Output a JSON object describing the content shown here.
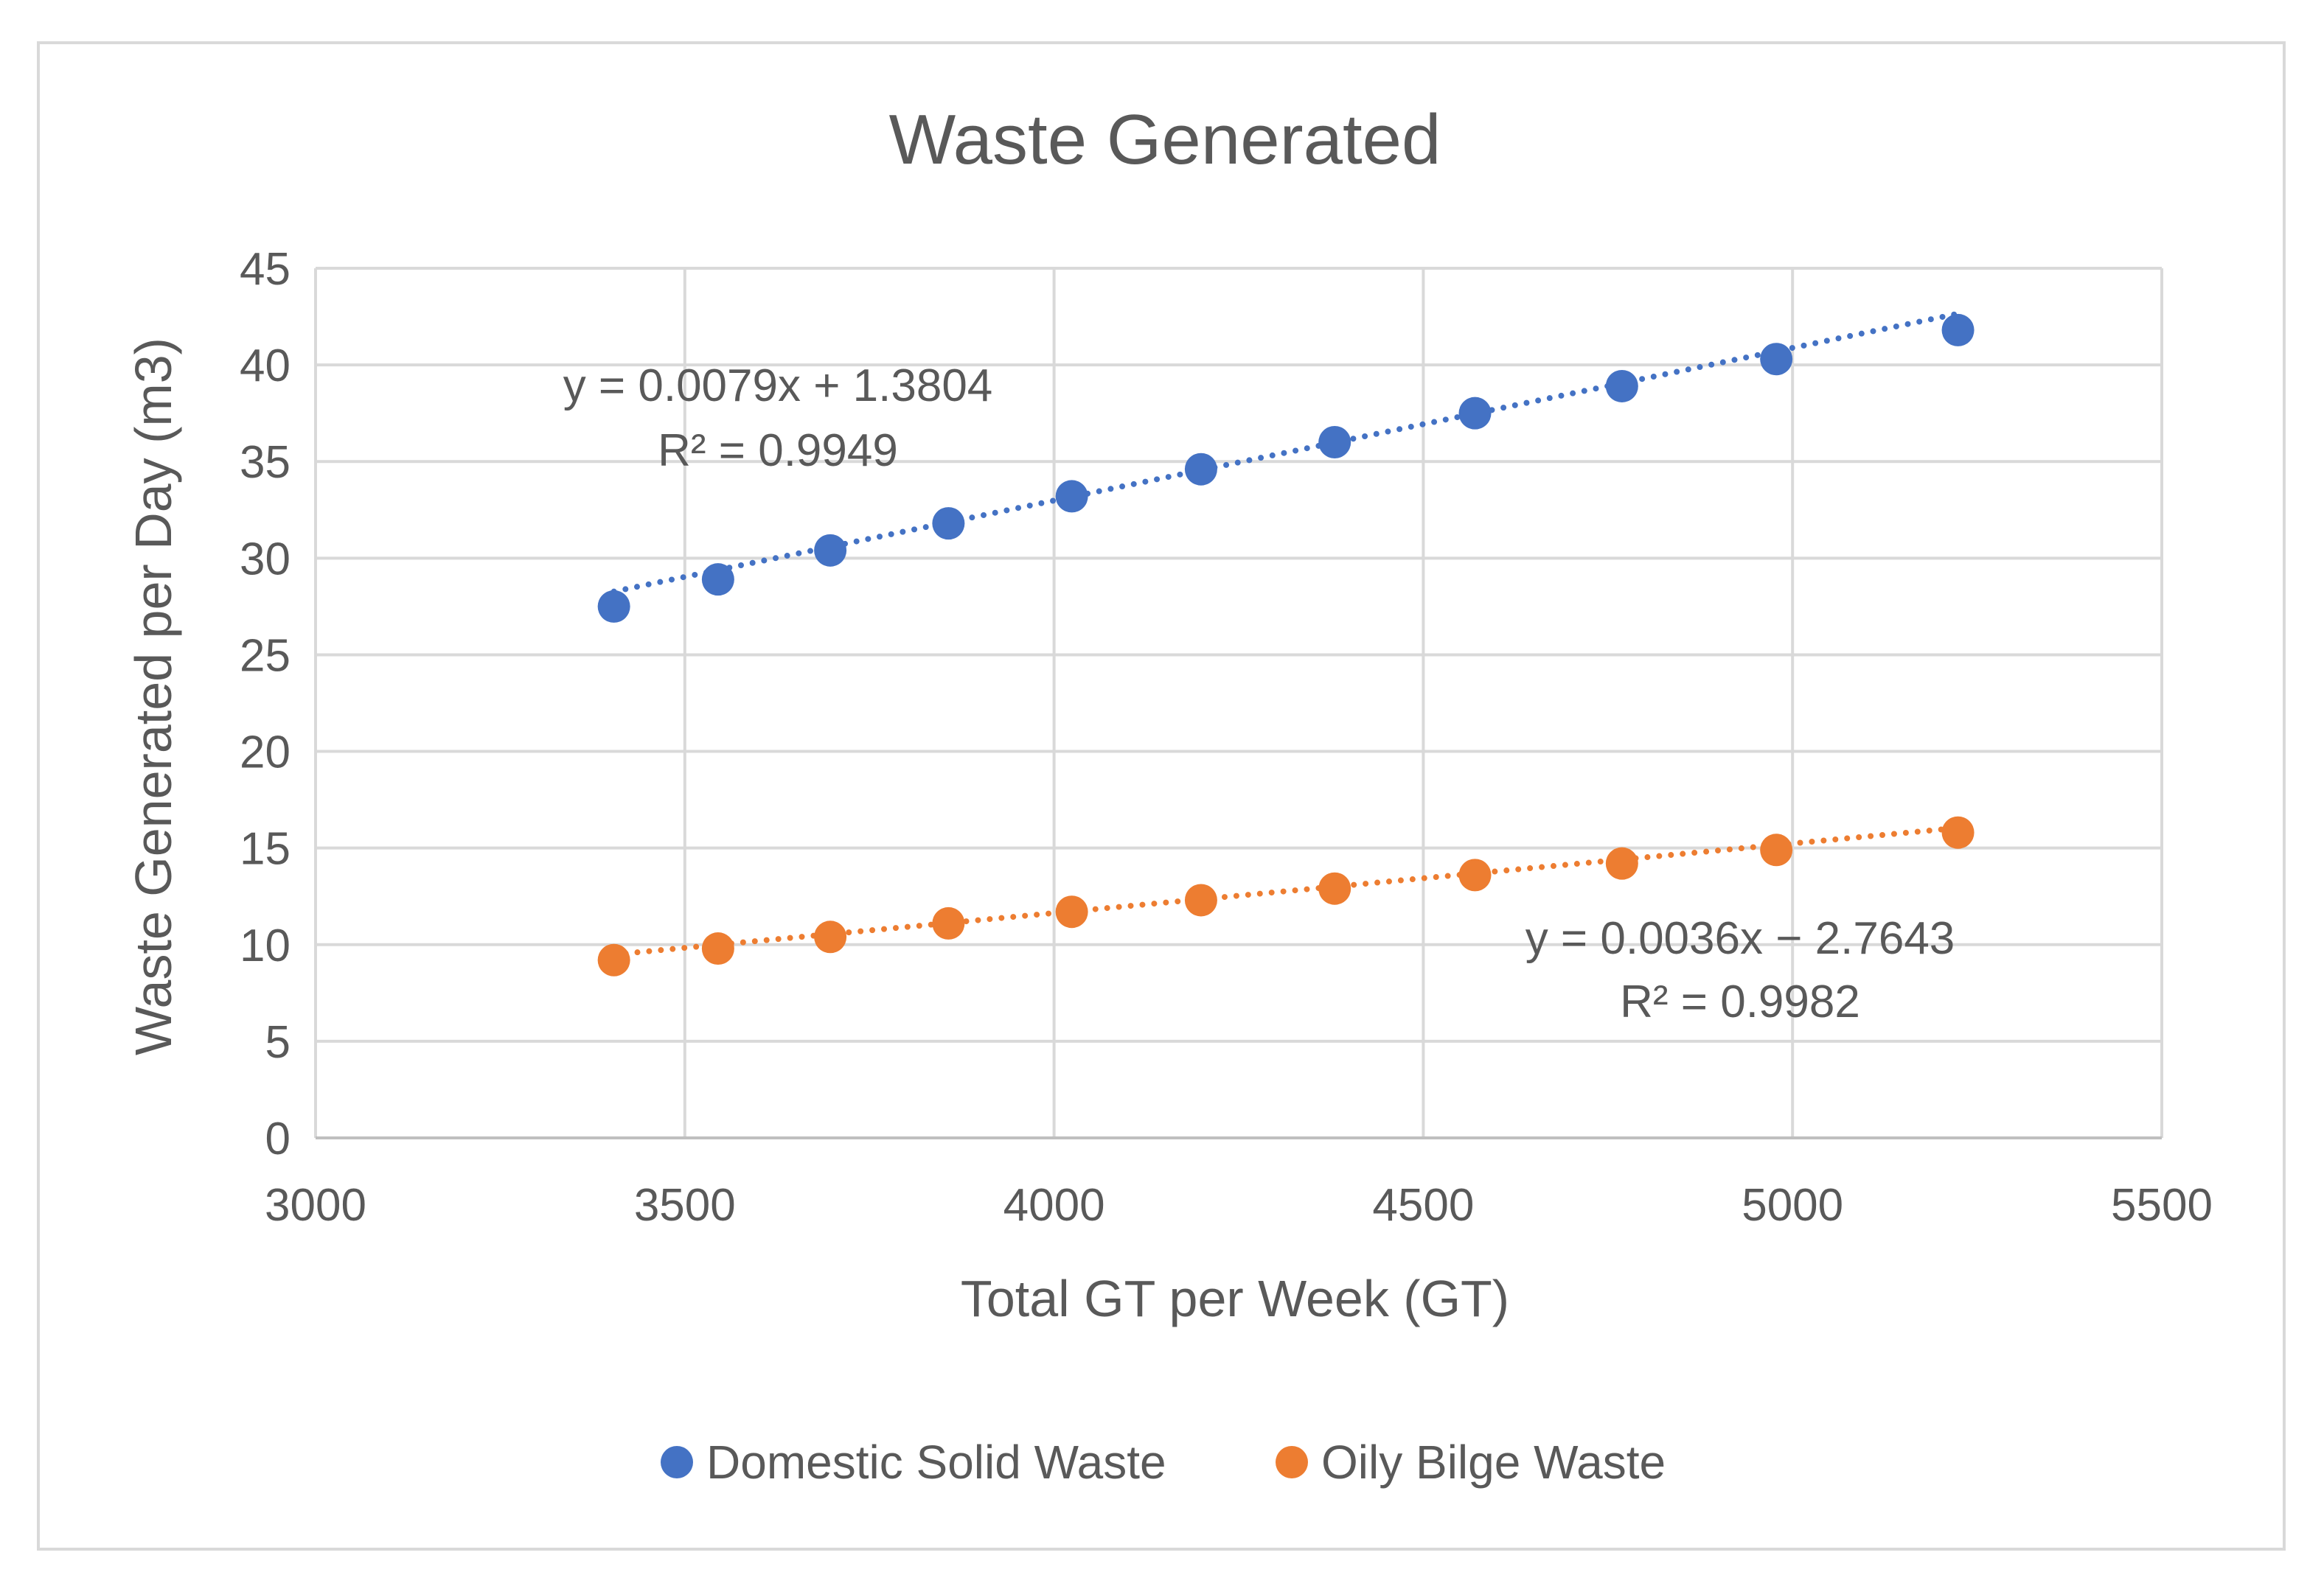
{
  "chart_data": {
    "type": "scatter",
    "title": "Waste Generated",
    "xlabel": "Total GT per Week (GT)",
    "ylabel": "Waste Generated per Day (m3)",
    "xlim": [
      3000,
      5500
    ],
    "ylim": [
      0,
      45
    ],
    "x_ticks": [
      3000,
      3500,
      4000,
      4500,
      5000,
      5500
    ],
    "y_ticks": [
      0,
      5,
      10,
      15,
      20,
      25,
      30,
      35,
      40,
      45
    ],
    "grid": true,
    "legend_position": "bottom",
    "series": [
      {
        "name": "Domestic Solid Waste",
        "color": "#4472C4",
        "x": [
          3404,
          3545,
          3697,
          3857,
          4024,
          4199,
          4380,
          4570,
          4769,
          4978,
          5224
        ],
        "y": [
          27.5,
          28.9,
          30.4,
          31.8,
          33.2,
          34.6,
          36.0,
          37.5,
          38.9,
          40.3,
          41.8
        ],
        "trendline": {
          "slope": 0.0079,
          "intercept": 1.3804,
          "equation": "y = 0.0079x + 1.3804",
          "r2": "R² = 0.9949"
        }
      },
      {
        "name": "Oily Bilge Waste",
        "color": "#ED7D31",
        "x": [
          3404,
          3545,
          3697,
          3857,
          4024,
          4199,
          4380,
          4570,
          4769,
          4978,
          5224
        ],
        "y": [
          9.2,
          9.8,
          10.4,
          11.1,
          11.7,
          12.3,
          12.9,
          13.6,
          14.2,
          14.9,
          15.8
        ],
        "trendline": {
          "slope": 0.0036,
          "intercept": -2.7643,
          "equation": "y = 0.0036x − 2.7643",
          "r2": "R² = 0.9982"
        }
      }
    ]
  }
}
